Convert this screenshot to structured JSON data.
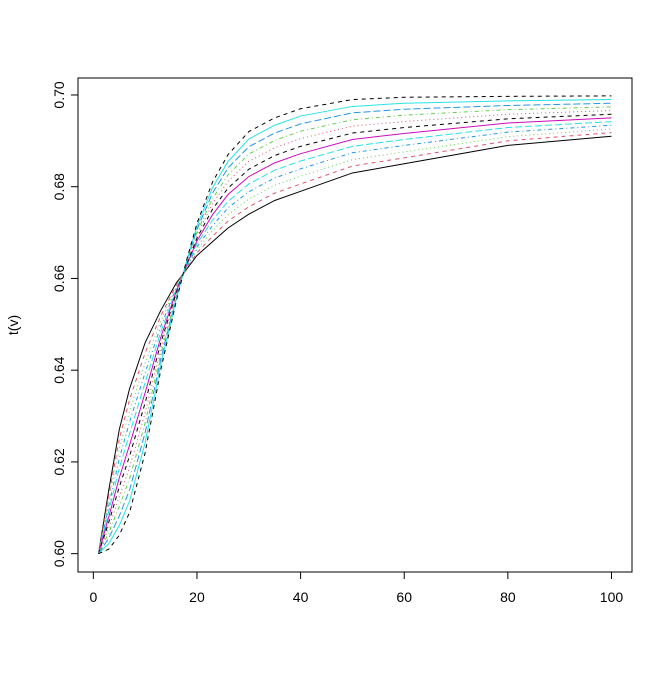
{
  "chart_data": {
    "type": "line",
    "ylabel": "t(v)",
    "x": [
      1,
      3,
      5,
      7,
      10,
      13,
      16,
      18,
      20,
      23,
      26,
      30,
      35,
      40,
      50,
      60,
      80,
      100
    ],
    "xlim": [
      -2.96,
      103.96
    ],
    "xticks": [
      0,
      20,
      40,
      60,
      80,
      100
    ],
    "ylim": [
      0.596,
      0.7037
    ],
    "yticks": [
      {
        "value": 0.6,
        "label": "0.60"
      },
      {
        "value": 0.62,
        "label": "0.62"
      },
      {
        "value": 0.64,
        "label": "0.64"
      },
      {
        "value": 0.66,
        "label": "0.66"
      },
      {
        "value": 0.68,
        "label": "0.68"
      },
      {
        "value": 0.7,
        "label": "0.70"
      }
    ],
    "grid": false,
    "series": [
      {
        "color": "#000000",
        "line_style": "solid",
        "values": [
          0.6,
          0.614,
          0.627,
          0.636,
          0.646,
          0.653,
          0.659,
          0.662,
          0.665,
          0.668,
          0.671,
          0.674,
          0.677,
          0.679,
          0.683,
          0.685,
          0.689,
          0.691
        ]
      },
      {
        "color": "#DF536B",
        "line_style": "dashed",
        "values": [
          0.6,
          0.6128,
          0.6249,
          0.6336,
          0.6438,
          0.6518,
          0.6586,
          0.6622,
          0.6656,
          0.6692,
          0.6725,
          0.6756,
          0.6786,
          0.6806,
          0.6845,
          0.6863,
          0.69,
          0.6918
        ]
      },
      {
        "color": "#61D04F",
        "line_style": "dotted",
        "values": [
          0.6,
          0.6116,
          0.6228,
          0.6311,
          0.6416,
          0.6506,
          0.6583,
          0.6624,
          0.6663,
          0.6704,
          0.6739,
          0.6773,
          0.6803,
          0.6823,
          0.6859,
          0.6876,
          0.6909,
          0.6926
        ]
      },
      {
        "color": "#2297E6",
        "line_style": "dotdash",
        "values": [
          0.6,
          0.6105,
          0.6207,
          0.6287,
          0.6395,
          0.6495,
          0.6579,
          0.6625,
          0.6669,
          0.6715,
          0.6754,
          0.6789,
          0.6819,
          0.6839,
          0.6874,
          0.689,
          0.6919,
          0.6934
        ]
      },
      {
        "color": "#28E2E5",
        "line_style": "longdash",
        "values": [
          0.6,
          0.6093,
          0.6186,
          0.6262,
          0.6373,
          0.6483,
          0.6576,
          0.6627,
          0.6676,
          0.6727,
          0.6768,
          0.6806,
          0.6836,
          0.6856,
          0.6888,
          0.6903,
          0.6929,
          0.6942
        ]
      },
      {
        "color": "#CD0BBC",
        "line_style": "solid",
        "values": [
          0.6,
          0.6081,
          0.6165,
          0.6237,
          0.6351,
          0.6471,
          0.6572,
          0.6629,
          0.6682,
          0.6739,
          0.6783,
          0.6822,
          0.6852,
          0.6872,
          0.6903,
          0.6916,
          0.6939,
          0.695
        ]
      },
      {
        "color": "#000000",
        "line_style": "dashed",
        "values": [
          0.6,
          0.6069,
          0.6145,
          0.6213,
          0.6329,
          0.6459,
          0.6568,
          0.6631,
          0.6688,
          0.6751,
          0.6797,
          0.6838,
          0.6868,
          0.6888,
          0.6917,
          0.6929,
          0.6948,
          0.6958
        ]
      },
      {
        "color": "#DF536B",
        "line_style": "dotted",
        "values": [
          0.6,
          0.6057,
          0.6124,
          0.6188,
          0.6307,
          0.6447,
          0.6565,
          0.6633,
          0.6695,
          0.6763,
          0.6812,
          0.6855,
          0.6885,
          0.6905,
          0.6932,
          0.6942,
          0.6958,
          0.6966
        ]
      },
      {
        "color": "#61D04F",
        "line_style": "dotdash",
        "values": [
          0.6,
          0.6046,
          0.6103,
          0.6164,
          0.6285,
          0.6435,
          0.6561,
          0.6635,
          0.6701,
          0.6774,
          0.6826,
          0.6871,
          0.6901,
          0.6921,
          0.6946,
          0.6956,
          0.6968,
          0.6974
        ]
      },
      {
        "color": "#2297E6",
        "line_style": "longdash",
        "values": [
          0.6,
          0.6034,
          0.6082,
          0.6139,
          0.6264,
          0.6424,
          0.6557,
          0.6636,
          0.6707,
          0.6786,
          0.6841,
          0.6887,
          0.6917,
          0.6937,
          0.6961,
          0.6969,
          0.6977,
          0.6982
        ]
      },
      {
        "color": "#28E2E5",
        "line_style": "solid",
        "values": [
          0.6,
          0.6022,
          0.6061,
          0.6115,
          0.6242,
          0.6412,
          0.6554,
          0.6638,
          0.6714,
          0.6798,
          0.6855,
          0.6904,
          0.6934,
          0.6954,
          0.6975,
          0.6982,
          0.6987,
          0.699
        ]
      },
      {
        "color": "#000000",
        "line_style": "dashed",
        "values": [
          0.6,
          0.601,
          0.604,
          0.609,
          0.622,
          0.64,
          0.655,
          0.664,
          0.672,
          0.681,
          0.687,
          0.692,
          0.695,
          0.697,
          0.699,
          0.6995,
          0.6997,
          0.6998
        ]
      }
    ]
  }
}
